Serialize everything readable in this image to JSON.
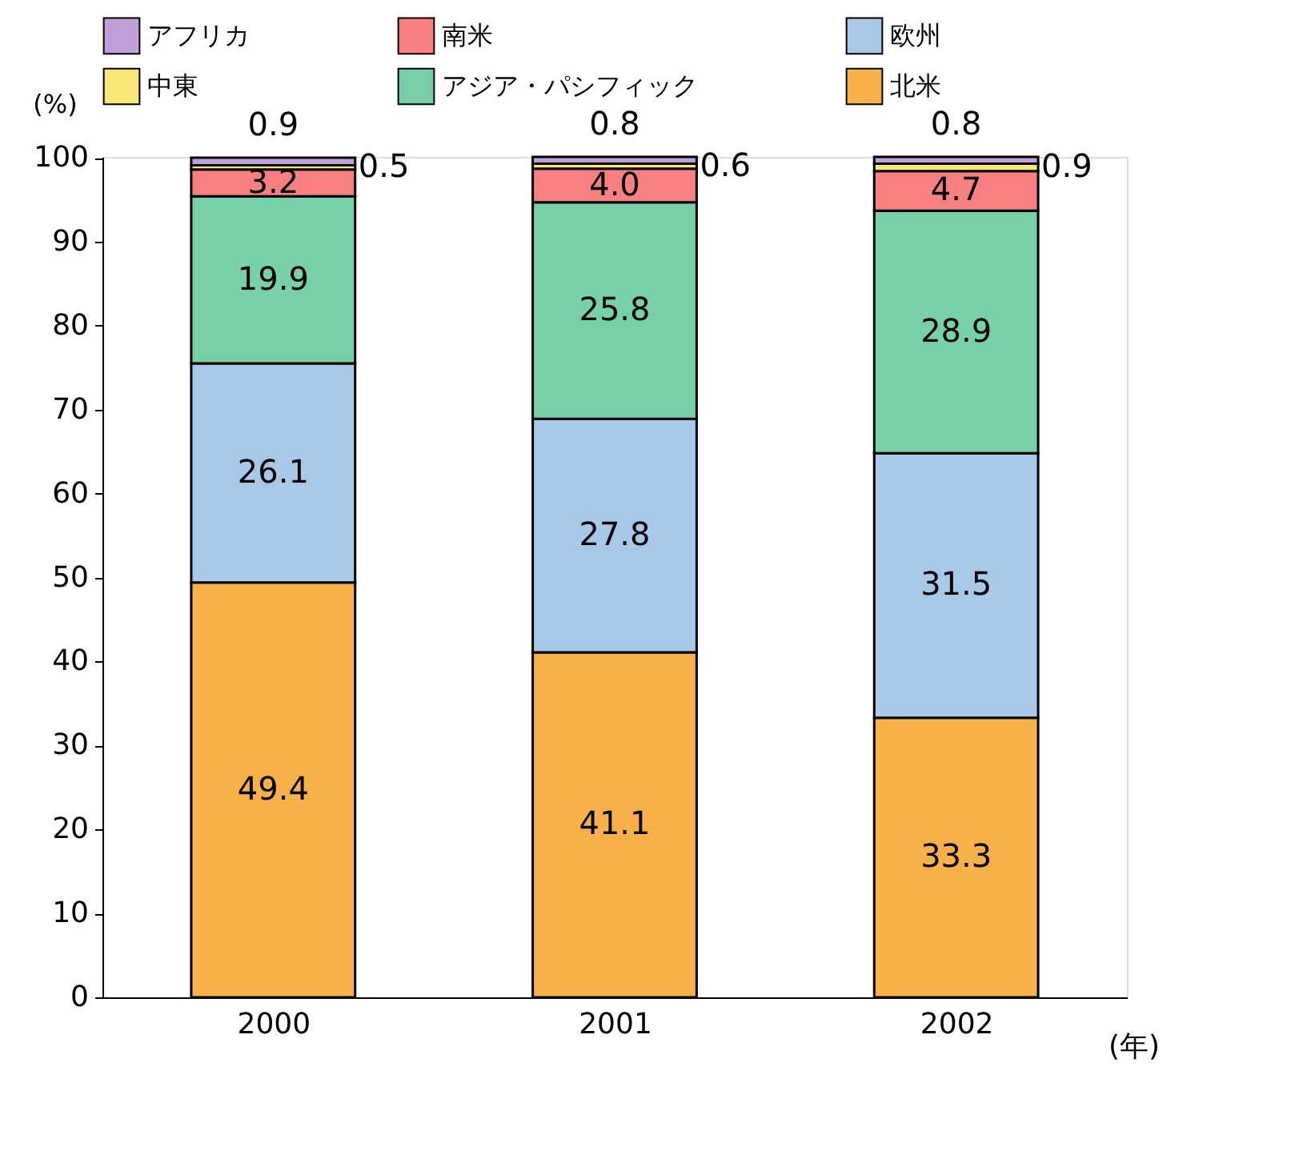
{
  "chart_data": {
    "type": "bar",
    "stacked": true,
    "categories": [
      "2000",
      "2001",
      "2002"
    ],
    "xlabel": "(年)",
    "ylabel": "(%)",
    "ylim": [
      0,
      100.1
    ],
    "yticks": [
      0,
      10,
      20,
      30,
      40,
      50,
      60,
      70,
      80,
      90,
      100
    ],
    "grid": false,
    "legend": "top",
    "series": [
      {
        "name": "北米",
        "color": "#f8b048",
        "values": [
          49.4,
          41.1,
          33.3
        ],
        "value_labels": [
          "49.4",
          "41.1",
          "33.3"
        ]
      },
      {
        "name": "欧州",
        "color": "#a8c8e8",
        "values": [
          26.1,
          27.8,
          31.5
        ],
        "value_labels": [
          "26.1",
          "27.8",
          "31.5"
        ]
      },
      {
        "name": "アジア・パシフィック",
        "color": "#78d0a8",
        "values": [
          19.9,
          25.8,
          28.9
        ],
        "value_labels": [
          "19.9",
          "25.8",
          "28.9"
        ]
      },
      {
        "name": "南米",
        "color": "#f88080",
        "values": [
          3.2,
          4.0,
          4.7
        ],
        "value_labels": [
          "3.2",
          "4.0",
          "4.7"
        ]
      },
      {
        "name": "中東",
        "color": "#f8e878",
        "values": [
          0.5,
          0.6,
          0.9
        ],
        "value_labels": [
          "0.5",
          "0.6",
          "0.9"
        ]
      },
      {
        "name": "アフリカ",
        "color": "#c0a0d8",
        "values": [
          0.9,
          0.8,
          0.8
        ],
        "value_labels": [
          "0.9",
          "0.8",
          "0.8"
        ]
      }
    ]
  }
}
